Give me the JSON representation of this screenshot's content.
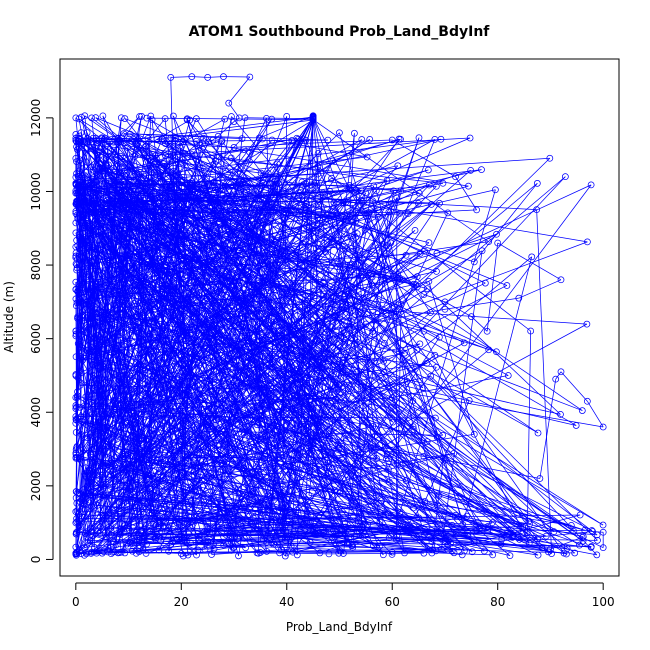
{
  "chart_data": {
    "type": "scatter",
    "title": "ATOM1 Southbound Prob_Land_BdyInf",
    "xlabel": "Prob_Land_BdyInf",
    "ylabel": "Altitude (m)",
    "xlim": [
      -3,
      103
    ],
    "ylim": [
      -450,
      13600
    ],
    "xticks": [
      0,
      20,
      40,
      60,
      80,
      100
    ],
    "yticks": [
      0,
      2000,
      4000,
      6000,
      8000,
      10000,
      12000
    ],
    "grid": false,
    "style": "points connected by lines (type='o')",
    "series_color": "#0000FF",
    "seed": 12345,
    "n_points": 1400,
    "series": [
      {
        "name": "",
        "x": [
          0,
          1,
          2,
          5,
          3,
          8,
          12,
          20,
          35,
          48,
          66,
          60,
          98,
          100,
          100,
          96,
          90,
          2,
          1,
          5,
          10,
          16,
          30,
          45,
          56,
          66,
          70,
          88,
          91,
          92,
          97,
          100,
          4,
          8,
          14,
          20,
          30,
          40,
          52,
          66,
          82,
          60,
          40,
          20,
          18,
          22,
          25,
          28,
          33,
          29,
          31,
          30,
          27,
          26,
          24,
          22,
          19,
          18,
          15,
          12,
          8,
          6,
          2,
          1,
          0,
          0,
          0,
          12,
          18,
          26,
          35,
          44,
          55,
          63,
          76,
          72,
          60,
          42,
          30,
          17,
          8,
          3,
          6,
          10,
          14,
          20,
          26,
          31,
          40,
          52,
          62,
          66,
          70,
          75,
          78,
          80,
          92,
          84,
          70,
          55,
          40,
          30,
          20,
          12,
          8,
          4,
          2,
          0,
          0,
          0,
          1,
          3,
          6,
          9,
          14,
          20,
          28,
          38,
          50,
          58,
          64,
          72,
          79,
          76,
          60,
          41,
          25,
          18,
          12,
          6,
          2,
          0,
          1,
          0
        ],
        "y": [
          150,
          160,
          155,
          170,
          200,
          180,
          210,
          160,
          190,
          150,
          170,
          200,
          760,
          740,
          320,
          600,
          280,
          1500,
          3400,
          3600,
          3200,
          3900,
          4000,
          3300,
          3000,
          2800,
          2700,
          2200,
          4900,
          5100,
          4300,
          3600,
          6000,
          5800,
          6500,
          6900,
          7100,
          7300,
          6700,
          6200,
          5000,
          4400,
          4100,
          3000,
          13100,
          13120,
          13100,
          13120,
          13110,
          12400,
          12000,
          11900,
          11500,
          11400,
          11300,
          11000,
          10300,
          10000,
          9800,
          9600,
          9400,
          9450,
          9500,
          11600,
          11550,
          10900,
          10200,
          9700,
          9500,
          9400,
          9450,
          9300,
          9350,
          9400,
          9500,
          10400,
          11400,
          11300,
          11200,
          11300,
          11450,
          12000,
          8000,
          8200,
          8400,
          8800,
          8600,
          8400,
          8200,
          8000,
          7600,
          7200,
          7000,
          6600,
          6200,
          8600,
          7600,
          7100,
          6800,
          6400,
          6000,
          5800,
          5500,
          5300,
          5000,
          4600,
          4300,
          4100,
          3700,
          4400,
          5600,
          2400,
          2600,
          2800,
          3000,
          3200,
          2600,
          2000,
          1800,
          1600,
          1400,
          1200,
          1000,
          800,
          700,
          600,
          500,
          400,
          300,
          250,
          200,
          160,
          900,
          1300
        ]
      }
    ]
  }
}
